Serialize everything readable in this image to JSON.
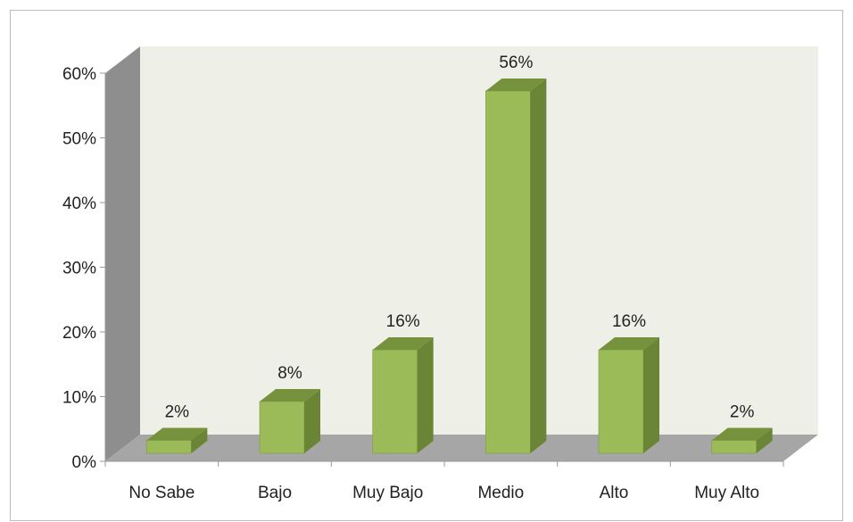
{
  "chart_data": {
    "type": "bar",
    "style": "3d-column",
    "categories": [
      "No Sabe",
      "Bajo",
      "Muy Bajo",
      "Medio",
      "Alto",
      "Muy Alto"
    ],
    "values": [
      2,
      8,
      16,
      56,
      16,
      2
    ],
    "data_labels": [
      "2%",
      "8%",
      "16%",
      "56%",
      "16%",
      "2%"
    ],
    "y_ticks": [
      "0%",
      "10%",
      "20%",
      "30%",
      "40%",
      "50%",
      "60%"
    ],
    "ylim": [
      0,
      60
    ],
    "grid": false,
    "legend": "none"
  },
  "colors": {
    "bar_front": "#9bbb59",
    "bar_top": "#76923c",
    "bar_side": "#6a8536",
    "back_wall": "#eef0e8",
    "side_wall": "#8e8e8e",
    "floor": "#a6a6a6"
  }
}
